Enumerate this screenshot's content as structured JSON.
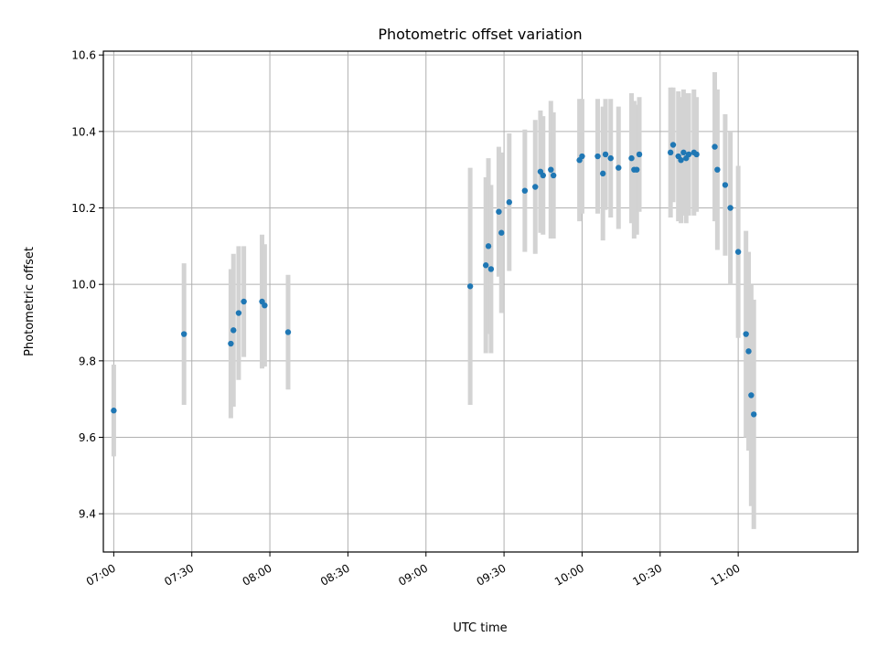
{
  "chart_data": {
    "type": "scatter",
    "title": "Photometric offset variation",
    "xlabel": "UTC time",
    "ylabel": "Photometric offset",
    "xlim": [
      "06:56",
      "11:46"
    ],
    "ylim": [
      9.3,
      10.61
    ],
    "x_ticks": [
      "07:00",
      "07:30",
      "08:00",
      "08:30",
      "09:00",
      "09:30",
      "10:00",
      "10:30",
      "11:00"
    ],
    "y_ticks": [
      9.4,
      9.6,
      9.8,
      10.0,
      10.2,
      10.4,
      10.6
    ],
    "grid": true,
    "colors": {
      "points": "#1f77b4",
      "errorbars": "#d3d3d3",
      "grid": "#b0b0b0"
    },
    "series": [
      {
        "x": [
          "07:00",
          "07:27",
          "07:45",
          "07:46",
          "07:48",
          "07:50",
          "07:57",
          "07:58",
          "08:07",
          "09:17",
          "09:23",
          "09:24",
          "09:25",
          "09:28",
          "09:29",
          "09:32",
          "09:38",
          "09:42",
          "09:44",
          "09:45",
          "09:48",
          "09:49",
          "09:59",
          "10:00",
          "10:06",
          "10:08",
          "10:09",
          "10:11",
          "10:14",
          "10:19",
          "10:20",
          "10:21",
          "10:22",
          "10:34",
          "10:35",
          "10:37",
          "10:38",
          "10:39",
          "10:40",
          "10:41",
          "10:43",
          "10:44",
          "10:51",
          "10:52",
          "10:55",
          "10:57",
          "11:00",
          "11:03",
          "11:04",
          "11:05",
          "11:06"
        ],
        "y": [
          9.67,
          9.87,
          9.845,
          9.88,
          9.925,
          9.955,
          9.955,
          9.945,
          9.875,
          9.995,
          10.05,
          10.1,
          10.04,
          10.19,
          10.135,
          10.215,
          10.245,
          10.255,
          10.295,
          10.285,
          10.3,
          10.285,
          10.325,
          10.335,
          10.335,
          10.29,
          10.34,
          10.33,
          10.305,
          10.33,
          10.3,
          10.3,
          10.34,
          10.345,
          10.365,
          10.335,
          10.325,
          10.345,
          10.33,
          10.34,
          10.345,
          10.34,
          10.36,
          10.3,
          10.26,
          10.2,
          10.085,
          9.87,
          9.825,
          9.71,
          9.66
        ],
        "yerr": [
          0.12,
          0.185,
          0.195,
          0.2,
          0.175,
          0.145,
          0.175,
          0.16,
          0.15,
          0.31,
          0.23,
          0.23,
          0.22,
          0.17,
          0.21,
          0.18,
          0.16,
          0.175,
          0.16,
          0.155,
          0.18,
          0.165,
          0.16,
          0.15,
          0.15,
          0.175,
          0.145,
          0.155,
          0.16,
          0.17,
          0.18,
          0.17,
          0.15,
          0.17,
          0.15,
          0.17,
          0.165,
          0.165,
          0.17,
          0.16,
          0.165,
          0.15,
          0.195,
          0.21,
          0.185,
          0.2,
          0.225,
          0.27,
          0.26,
          0.29,
          0.3
        ]
      }
    ]
  }
}
